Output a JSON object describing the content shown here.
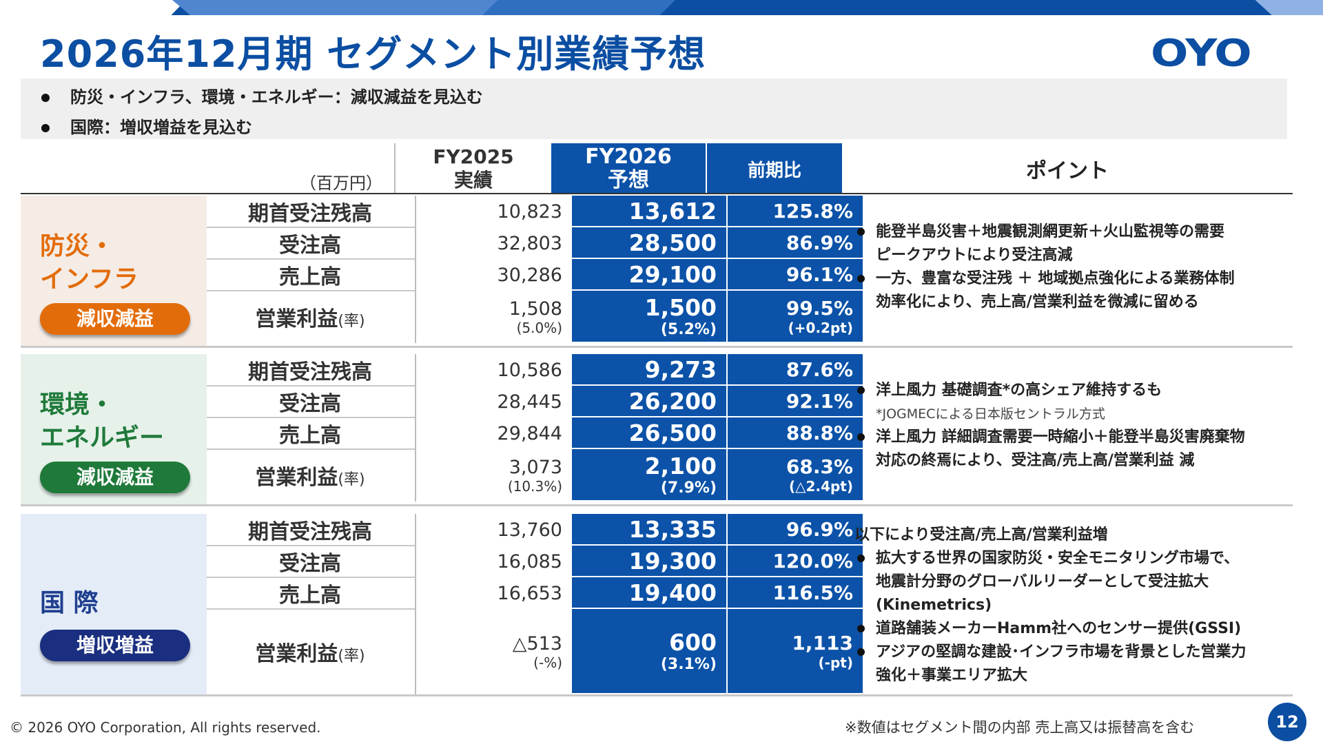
{
  "title": "2026年12月期 セグメント別業績予想",
  "logo": "OYO",
  "summary": [
    "防災・インフラ、環境・エネルギー：減収減益を見込む",
    "国際：増収増益を見込む"
  ],
  "header": {
    "unit": "（百万円）",
    "fy2025_line1": "FY2025",
    "fy2025_line2": "実績",
    "fy2026_line1": "FY2026",
    "fy2026_line2": "予想",
    "yoy": "前期比",
    "point": "ポイント"
  },
  "metrics": [
    "期首受注残高",
    "受注高",
    "売上高",
    "営業利益"
  ],
  "rate_suffix": "(率)",
  "segments": [
    {
      "name": "防災・\nインフラ",
      "badge": "減収減益",
      "name_color": "#e36c0a",
      "badge_color": "#e36c0a",
      "bg": "#f5ece6",
      "rows": [
        {
          "fy2025": "10,823",
          "fy2026": "13,612",
          "yoy": "125.8%"
        },
        {
          "fy2025": "32,803",
          "fy2026": "28,500",
          "yoy": "86.9%"
        },
        {
          "fy2025": "30,286",
          "fy2026": "29,100",
          "yoy": "96.1%"
        },
        {
          "fy2025": "1,508",
          "fy2025_sub": "(5.0%)",
          "fy2026": "1,500",
          "fy2026_sub": "(5.2%)",
          "yoy": "99.5%",
          "yoy_sub": "(+0.2pt)"
        }
      ],
      "points": [
        {
          "type": "bullet",
          "text": "能登半島災害＋地震観測網更新＋火山監視等の需要"
        },
        {
          "type": "indent",
          "text": "ピークアウトにより受注高減"
        },
        {
          "type": "bullet",
          "text": "一方、豊富な受注残 ＋ 地域拠点強化による業務体制"
        },
        {
          "type": "indent",
          "text": "効率化により、売上高/営業利益を微減に留める"
        }
      ]
    },
    {
      "name": "環境・\nエネルギー",
      "badge": "減収減益",
      "name_color": "#1f7a3a",
      "badge_color": "#1f7a3a",
      "bg": "#e6f1ea",
      "rows": [
        {
          "fy2025": "10,586",
          "fy2026": "9,273",
          "yoy": "87.6%"
        },
        {
          "fy2025": "28,445",
          "fy2026": "26,200",
          "yoy": "92.1%"
        },
        {
          "fy2025": "29,844",
          "fy2026": "26,500",
          "yoy": "88.8%"
        },
        {
          "fy2025": "3,073",
          "fy2025_sub": "(10.3%)",
          "fy2026": "2,100",
          "fy2026_sub": "(7.9%)",
          "yoy": "68.3%",
          "yoy_sub": "(△2.4pt)"
        }
      ],
      "points": [
        {
          "type": "bullet",
          "text": "洋上風力 基礎調査*の高シェア維持するも"
        },
        {
          "type": "note",
          "text": "*JOGMECによる日本版セントラル方式"
        },
        {
          "type": "bullet",
          "text": "洋上風力 詳細調査需要一時縮小＋能登半島災害廃棄物"
        },
        {
          "type": "indent",
          "text": "対応の終焉により、受注高/売上高/営業利益 減"
        }
      ]
    },
    {
      "name": "国 際",
      "badge": "増収増益",
      "name_color": "#1f3f8f",
      "badge_color": "#1a2f80",
      "bg": "#e4ecf8",
      "rows": [
        {
          "fy2025": "13,760",
          "fy2026": "13,335",
          "yoy": "96.9%"
        },
        {
          "fy2025": "16,085",
          "fy2026": "19,300",
          "yoy": "120.0%"
        },
        {
          "fy2025": "16,653",
          "fy2026": "19,400",
          "yoy": "116.5%"
        },
        {
          "fy2025": "△513",
          "fy2025_sub": "(-%)",
          "fy2026": "600",
          "fy2026_sub": "(3.1%)",
          "yoy": "1,113",
          "yoy_sub": "(-pt)"
        }
      ],
      "points": [
        {
          "type": "plain",
          "text": "以下により受注高/売上高/営業利益増"
        },
        {
          "type": "bullet",
          "text": "拡大する世界の国家防災・安全モニタリング市場で、"
        },
        {
          "type": "indent",
          "text": "地震計分野のグローバルリーダーとして受注拡大"
        },
        {
          "type": "indent",
          "text": "(Kinemetrics)"
        },
        {
          "type": "bullet",
          "text": "道路舗装メーカーHamm社へのセンサー提供(GSSI)"
        },
        {
          "type": "bullet",
          "text": "アジアの堅調な建設･インフラ市場を背景とした営業力"
        },
        {
          "type": "indent",
          "text": "強化＋事業エリア拡大"
        }
      ]
    }
  ],
  "footer": {
    "copyright": "© 2026 OYO Corporation, All rights reserved.",
    "note": "※数値はセグメント間の内部 売上高又は振替高を含む",
    "page": "12"
  }
}
